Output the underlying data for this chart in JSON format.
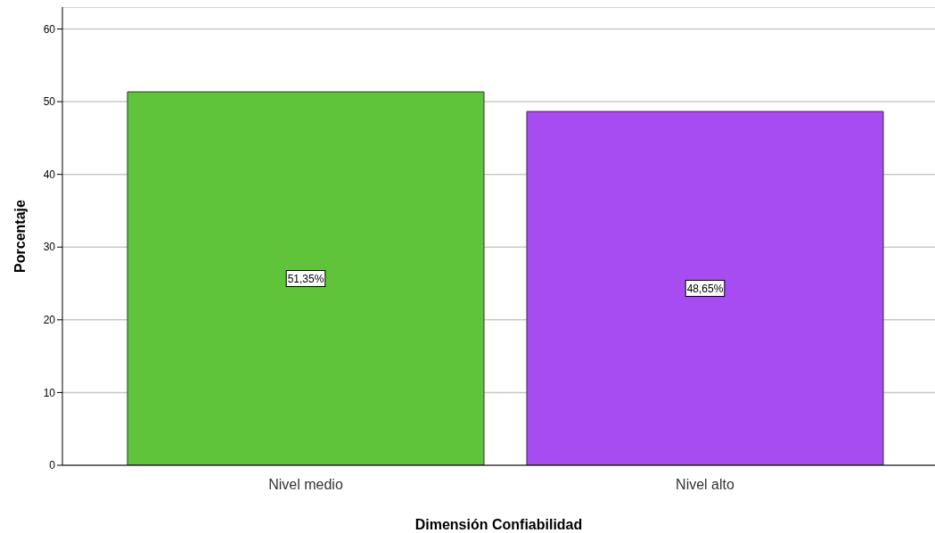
{
  "chart_data": {
    "type": "bar",
    "xlabel": "Dimensión Confiabilidad",
    "ylabel": "Porcentaje",
    "categories": [
      "Nivel medio",
      "Nivel alto"
    ],
    "values": [
      51.35,
      48.65
    ],
    "colors": [
      "#5fc43a",
      "#a64cf0"
    ],
    "value_labels": [
      "51,35%",
      "48,65%"
    ],
    "ylim": [
      0,
      63
    ],
    "yticks": [
      0,
      10,
      20,
      30,
      40,
      50,
      60
    ],
    "grid": "y"
  }
}
